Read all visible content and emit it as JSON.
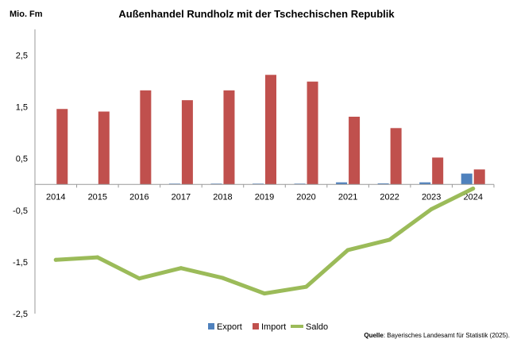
{
  "chart_data": {
    "type": "bar",
    "title": "Außenhandel Rundholz mit der Tschechischen Republik",
    "unit_label": "Mio. Fm",
    "categories": [
      "2014",
      "2015",
      "2016",
      "2017",
      "2018",
      "2019",
      "2020",
      "2021",
      "2022",
      "2023",
      "2024"
    ],
    "ylim": [
      -2.5,
      3.0
    ],
    "y_ticks": [
      2.5,
      1.5,
      0.5,
      -0.5,
      -1.5,
      -2.5
    ],
    "y_tick_labels": [
      "2,5",
      "1,5",
      "0,5",
      "-0,5",
      "-1,5",
      "-2,5"
    ],
    "grid": false,
    "legend_position": "bottom",
    "series": [
      {
        "name": "Export",
        "kind": "bar",
        "color": "#4f81bd",
        "values": [
          0.0,
          0.0,
          0.0,
          0.01,
          0.01,
          0.01,
          0.01,
          0.04,
          0.02,
          0.04,
          0.21
        ]
      },
      {
        "name": "Import",
        "kind": "bar",
        "color": "#c0504d",
        "values": [
          1.46,
          1.41,
          1.82,
          1.63,
          1.82,
          2.12,
          1.99,
          1.31,
          1.09,
          0.52,
          0.29
        ]
      },
      {
        "name": "Saldo",
        "kind": "line",
        "color": "#9bbb59",
        "values": [
          -1.46,
          -1.41,
          -1.82,
          -1.62,
          -1.81,
          -2.11,
          -1.98,
          -1.27,
          -1.07,
          -0.48,
          -0.08
        ]
      }
    ]
  },
  "source": {
    "label": "Quelle",
    "text": ": Bayerisches Landesamt für Statistik (2025)."
  }
}
